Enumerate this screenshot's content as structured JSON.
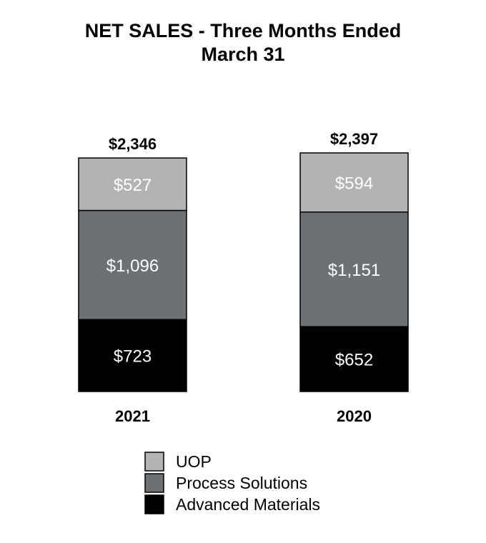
{
  "chart_data": {
    "type": "bar",
    "stacked": true,
    "title": "NET SALES - Three Months Ended March 31",
    "title_lines": [
      "NET SALES - Three Months Ended",
      "March 31"
    ],
    "categories": [
      "2021",
      "2020"
    ],
    "totals": [
      "$2,346",
      "$2,397"
    ],
    "total_values": [
      2346,
      2397
    ],
    "series": [
      {
        "name": "Advanced Materials",
        "values": [
          723,
          652
        ],
        "labels": [
          "$723",
          "$652"
        ],
        "color": "#000000"
      },
      {
        "name": "Process Solutions",
        "values": [
          1096,
          1151
        ],
        "labels": [
          "$1,096",
          "$1,151"
        ],
        "color": "#6d7174"
      },
      {
        "name": "UOP",
        "values": [
          527,
          594
        ],
        "labels": [
          "$527",
          "$594"
        ],
        "color": "#b3b3b3"
      }
    ],
    "legend": {
      "position": "bottom",
      "entries": [
        "UOP",
        "Process Solutions",
        "Advanced Materials"
      ],
      "colors": [
        "#b3b3b3",
        "#6d7174",
        "#000000"
      ]
    },
    "ylim": [
      0,
      2397
    ],
    "grid": false,
    "axes_visible": false
  }
}
